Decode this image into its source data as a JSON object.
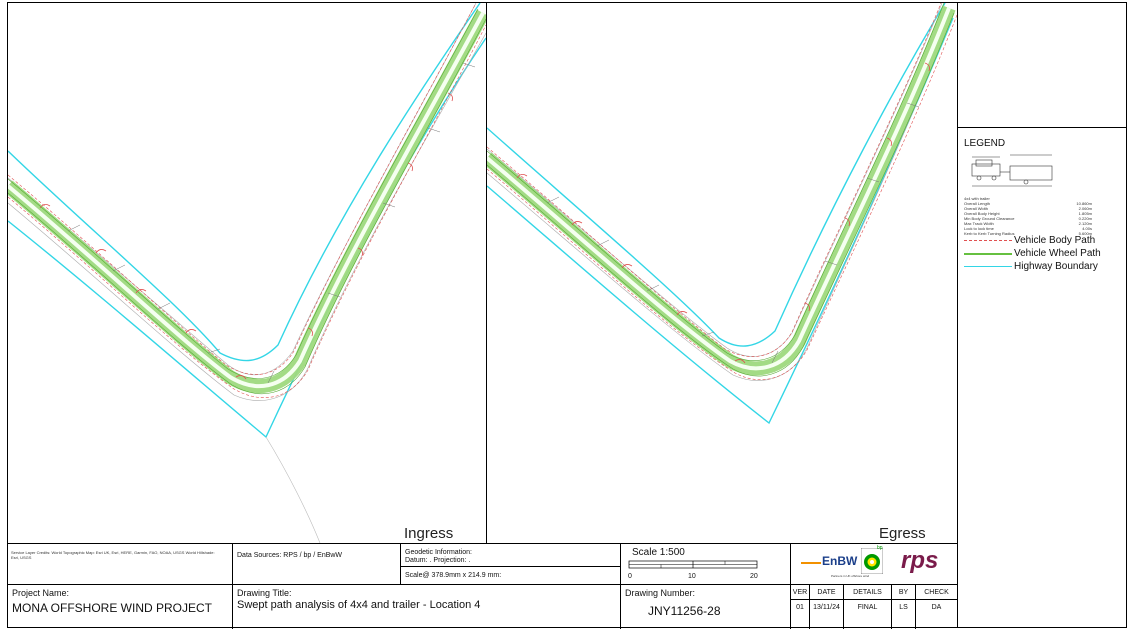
{
  "panels": {
    "left_label": "Ingress",
    "right_label": "Egress"
  },
  "legend": {
    "title": "LEGEND",
    "vehicle_name": "4x4 with trailer",
    "specs": [
      {
        "label": "Overall Length",
        "value": "10.860m"
      },
      {
        "label": "Overall Width",
        "value": "2.060m"
      },
      {
        "label": "Overall Body Height",
        "value": "1.805m"
      },
      {
        "label": "Min Body Ground Clearance",
        "value": "0.220m"
      },
      {
        "label": "Max Track Width",
        "value": "2.120m"
      },
      {
        "label": "Lock to lock time",
        "value": "4.00s"
      },
      {
        "label": "Kerb to Kerb Turning Radius",
        "value": "5.600m"
      }
    ],
    "items": [
      {
        "label": "Vehicle Body Path",
        "color": "#e05050",
        "style": "dashed"
      },
      {
        "label": "Vehicle Wheel Path",
        "color": "#66c040",
        "style": "solid"
      },
      {
        "label": "Highway Boundary",
        "color": "#33d6e6",
        "style": "solid"
      }
    ]
  },
  "title_block": {
    "credits": "Service Layer Credits: World Topographic Map: Esri UK, Esri, HERE, Garmin, FAO, NOAA, USGS World Hillshade: Esri, USGS",
    "data_sources": "Data Sources: RPS / bp / EnBwW",
    "geodetic_title": "Geodetic Information:",
    "geodetic_line": "Datum: . Projection: .",
    "scale_size": "Scale@ 378.9mm x 214.9 mm:",
    "scale_title": "Scale 1:500",
    "scale_ticks": [
      "0",
      "10",
      "20"
    ],
    "project_label": "Project Name:",
    "project_name": "MONA OFFSHORE WIND PROJECT",
    "drawing_title_label": "Drawing Title:",
    "drawing_title": "Swept path analysis of 4x4 and trailer - Location 4",
    "drawing_number_label": "Drawing Number:",
    "drawing_number": "JNY11256-28",
    "revision_headers": [
      "VER",
      "DATE",
      "DETAILS",
      "BY",
      "CHECK"
    ],
    "revision_row": [
      "01",
      "13/11/24",
      "FINAL",
      "LS",
      "DA"
    ],
    "logos": {
      "enbw": "EnBW",
      "bp": "bp",
      "rps": "rps",
      "tagline": "Partners in UK offshore wind"
    }
  },
  "colors": {
    "wheel_path": "#9ed97e",
    "body_path": "#e05050",
    "boundary": "#33d6e6",
    "rps": "#7a1b4a",
    "enbw_orange": "#f29100",
    "bp_green": "#009900",
    "bp_yellow": "#ffe600"
  }
}
